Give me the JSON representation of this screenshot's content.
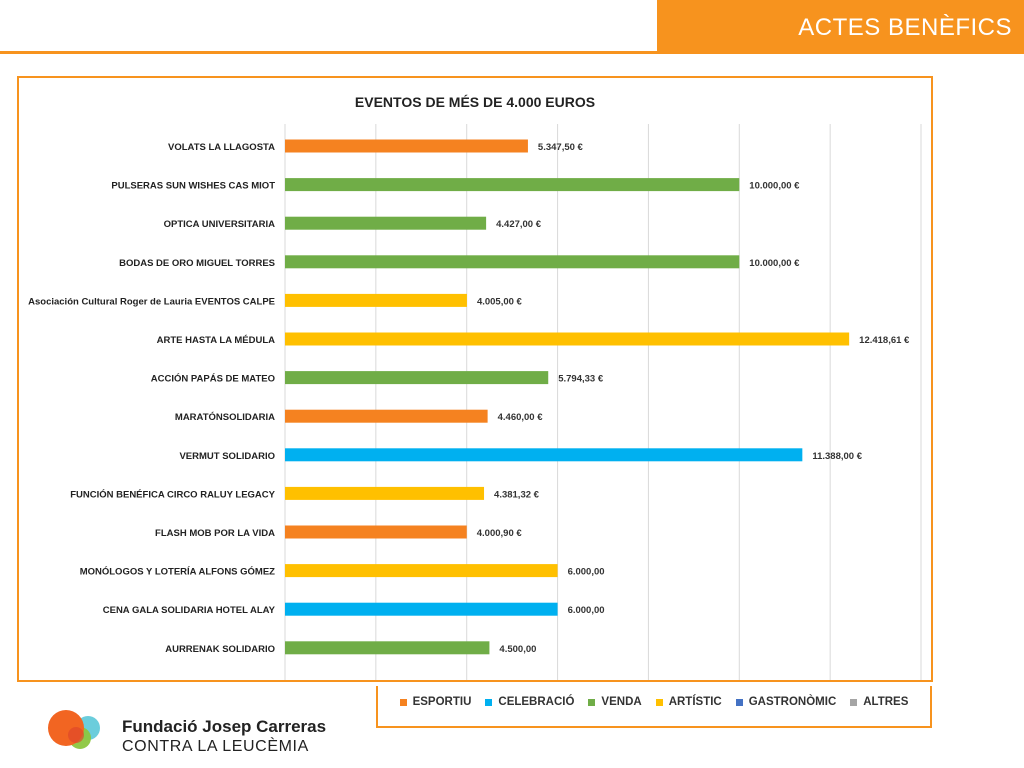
{
  "header": {
    "title": "ACTES BENÈFICS",
    "accent_color": "#f7931e"
  },
  "organization": {
    "name": "Fundació Josep Carreras",
    "subtitle": "CONTRA LA LEUCÈMIA",
    "logo_icon": "fundacio-logo-icon"
  },
  "chart_data": {
    "type": "bar",
    "orientation": "horizontal",
    "title": "EVENTOS DE MÉS DE 4.000 EUROS",
    "xlim": [
      0,
      14000
    ],
    "grid": true,
    "legend_position": "bottom",
    "legend": [
      {
        "name": "ESPORTIU",
        "color": "#f58220"
      },
      {
        "name": "CELEBRACIÓ",
        "color": "#00b0f0"
      },
      {
        "name": "VENDA",
        "color": "#70ad47"
      },
      {
        "name": "ARTÍSTIC",
        "color": "#ffc000"
      },
      {
        "name": "GASTRONÒMIC",
        "color": "#4472c4"
      },
      {
        "name": "ALTRES",
        "color": "#a5a5a5"
      }
    ],
    "bars": [
      {
        "label": "VOLATS LA LLAGOSTA",
        "value": 5347.5,
        "value_label": "5.347,50 €",
        "category": "ESPORTIU"
      },
      {
        "label": "PULSERAS SUN WISHES CAS MIOT",
        "value": 10000.0,
        "value_label": "10.000,00 €",
        "category": "VENDA"
      },
      {
        "label": "OPTICA UNIVERSITARIA",
        "value": 4427.0,
        "value_label": "4.427,00 €",
        "category": "VENDA"
      },
      {
        "label": "BODAS DE ORO MIGUEL TORRES",
        "value": 10000.0,
        "value_label": "10.000,00 €",
        "category": "VENDA"
      },
      {
        "label": "Asociación Cultural Roger de Lauria EVENTOS CALPE",
        "value": 4005.0,
        "value_label": "4.005,00 €",
        "category": "ARTÍSTIC"
      },
      {
        "label": "ARTE HASTA LA MÉDULA",
        "value": 12418.61,
        "value_label": "12.418,61 €",
        "category": "ARTÍSTIC"
      },
      {
        "label": "ACCIÓN PAPÁS DE MATEO",
        "value": 5794.33,
        "value_label": "5.794,33 €",
        "category": "VENDA"
      },
      {
        "label": "MARATÓNSOLIDARIA",
        "value": 4460.0,
        "value_label": "4.460,00 €",
        "category": "ESPORTIU"
      },
      {
        "label": "VERMUT SOLIDARIO",
        "value": 11388.0,
        "value_label": "11.388,00 €",
        "category": "CELEBRACIÓ"
      },
      {
        "label": "FUNCIÓN BENÉFICA CIRCO RALUY LEGACY",
        "value": 4381.32,
        "value_label": "4.381,32 €",
        "category": "ARTÍSTIC"
      },
      {
        "label": "FLASH MOB POR LA VIDA",
        "value": 4000.9,
        "value_label": "4.000,90 €",
        "category": "ESPORTIU"
      },
      {
        "label": "MONÓLOGOS Y LOTERÍA ALFONS GÓMEZ",
        "value": 6000.0,
        "value_label": "6.000,00",
        "category": "ARTÍSTIC"
      },
      {
        "label": "CENA GALA SOLIDARIA HOTEL ALAY",
        "value": 6000.0,
        "value_label": "6.000,00",
        "category": "CELEBRACIÓ"
      },
      {
        "label": "AURRENAK SOLIDARIO",
        "value": 4500.0,
        "value_label": "4.500,00",
        "category": "VENDA"
      }
    ]
  }
}
